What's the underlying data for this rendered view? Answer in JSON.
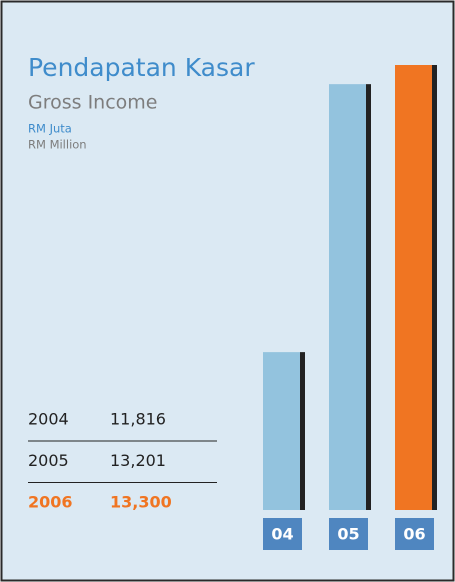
{
  "chart_data": {
    "type": "bar",
    "title": "Pendapatan Kasar",
    "subtitle": "Gross Income",
    "unit_label": "RM Juta",
    "unit_label_en": "RM Million",
    "categories": [
      "04",
      "05",
      "06"
    ],
    "years": [
      "2004",
      "2005",
      "2006"
    ],
    "values": [
      11816,
      13201,
      13300
    ],
    "value_labels": [
      "11,816",
      "13,201",
      "13,300"
    ],
    "colors": [
      "#93c3de",
      "#93c3de",
      "#f07522"
    ],
    "ylim": [
      11000,
      13300
    ]
  }
}
